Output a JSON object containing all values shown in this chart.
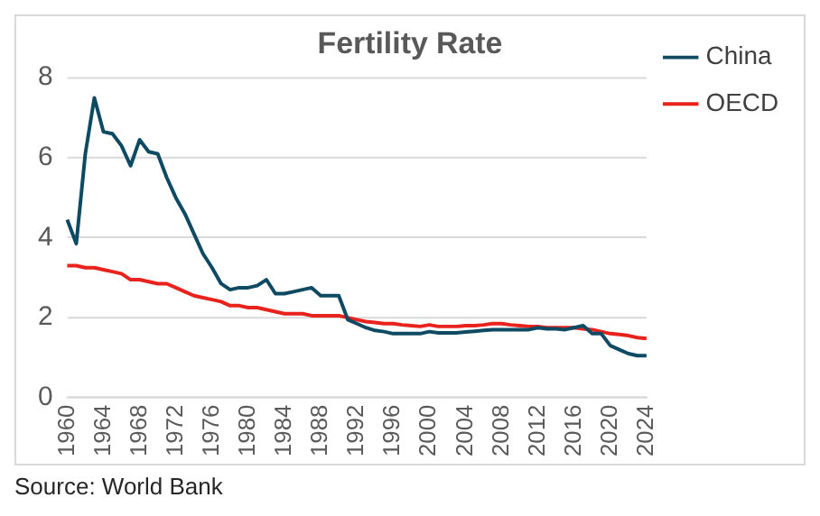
{
  "chart_data": {
    "type": "line",
    "title": "Fertility Rate",
    "categories": [
      "1960",
      null,
      null,
      null,
      "1964",
      null,
      null,
      null,
      "1968",
      null,
      null,
      null,
      "1972",
      null,
      null,
      null,
      "1976",
      null,
      null,
      null,
      "1980",
      null,
      null,
      null,
      "1984",
      null,
      null,
      null,
      "1988",
      null,
      null,
      null,
      "1992",
      null,
      null,
      null,
      "1996",
      null,
      null,
      null,
      "2000",
      null,
      null,
      null,
      "2004",
      null,
      null,
      null,
      "2008",
      null,
      null,
      null,
      "2012",
      null,
      null,
      null,
      "2016",
      null,
      null,
      null,
      "2020",
      null,
      null,
      null,
      "2024"
    ],
    "series": [
      {
        "name": "China",
        "color": "#0e4a62",
        "values": [
          4.45,
          3.85,
          6.1,
          7.5,
          6.65,
          6.6,
          6.3,
          5.8,
          6.45,
          6.15,
          6.1,
          5.5,
          5.0,
          4.6,
          4.1,
          3.6,
          3.25,
          2.85,
          2.7,
          2.75,
          2.75,
          2.8,
          2.95,
          2.6,
          2.6,
          2.65,
          2.7,
          2.75,
          2.55,
          2.55,
          2.55,
          1.95,
          1.85,
          1.75,
          1.68,
          1.65,
          1.6,
          1.6,
          1.6,
          1.6,
          1.65,
          1.62,
          1.62,
          1.62,
          1.64,
          1.66,
          1.68,
          1.7,
          1.7,
          1.7,
          1.7,
          1.7,
          1.75,
          1.72,
          1.72,
          1.7,
          1.75,
          1.8,
          1.6,
          1.6,
          1.3,
          1.2,
          1.1,
          1.05,
          1.05
        ]
      },
      {
        "name": "OECD",
        "color": "#e8221c",
        "values": [
          3.3,
          3.3,
          3.25,
          3.25,
          3.2,
          3.15,
          3.1,
          2.95,
          2.95,
          2.9,
          2.85,
          2.85,
          2.75,
          2.65,
          2.55,
          2.5,
          2.45,
          2.4,
          2.3,
          2.3,
          2.25,
          2.25,
          2.2,
          2.15,
          2.1,
          2.1,
          2.1,
          2.05,
          2.05,
          2.05,
          2.05,
          2.0,
          1.95,
          1.9,
          1.88,
          1.85,
          1.85,
          1.82,
          1.8,
          1.78,
          1.82,
          1.78,
          1.78,
          1.78,
          1.8,
          1.8,
          1.82,
          1.85,
          1.85,
          1.82,
          1.8,
          1.78,
          1.78,
          1.75,
          1.75,
          1.75,
          1.75,
          1.72,
          1.7,
          1.65,
          1.6,
          1.58,
          1.55,
          1.5,
          1.48
        ]
      }
    ],
    "ylim": [
      0,
      8
    ],
    "yticks": [
      0,
      2,
      4,
      6,
      8
    ],
    "grid": "y",
    "legend": "right",
    "marker": "none",
    "line_style": "solid",
    "annotations": [
      "Source: World Bank"
    ]
  }
}
